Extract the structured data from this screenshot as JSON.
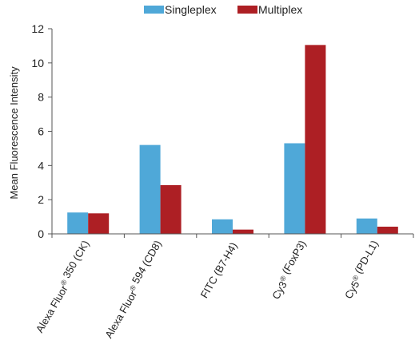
{
  "chart_data": {
    "type": "bar",
    "title": "",
    "xlabel": "",
    "ylabel": "Mean Fluorescence Intensity",
    "ylim": [
      0,
      12
    ],
    "yticks": [
      0,
      2,
      4,
      6,
      8,
      10,
      12
    ],
    "grid": false,
    "legend_position": "top-center",
    "categories": [
      "Alexa Fluor® 350 (CK)",
      "Alexa Fluor® 594 (CD8)",
      "FITC (B7-H4)",
      "Cy3® (FoxP3)",
      "Cy5® (PD-L1)"
    ],
    "series": [
      {
        "name": "Singleplex",
        "color": "#4fa8d8",
        "values": [
          1.25,
          5.2,
          0.85,
          5.3,
          0.9
        ]
      },
      {
        "name": "Multiplex",
        "color": "#ad1f24",
        "values": [
          1.2,
          2.85,
          0.25,
          11.05,
          0.42
        ]
      }
    ]
  }
}
